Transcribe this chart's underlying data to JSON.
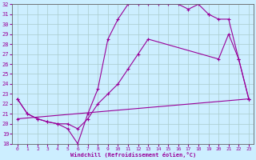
{
  "xlabel": "Windchill (Refroidissement éolien,°C)",
  "xlim": [
    -0.5,
    23.5
  ],
  "ylim": [
    18,
    32
  ],
  "xticks": [
    0,
    1,
    2,
    3,
    4,
    5,
    6,
    7,
    8,
    9,
    10,
    11,
    12,
    13,
    14,
    15,
    16,
    17,
    18,
    19,
    20,
    21,
    22,
    23
  ],
  "yticks": [
    18,
    19,
    20,
    21,
    22,
    23,
    24,
    25,
    26,
    27,
    28,
    29,
    30,
    31,
    32
  ],
  "line_color": "#990099",
  "bg_color": "#cceeff",
  "grid_color": "#aacccc",
  "line_width": 0.8,
  "marker_size": 3.0,
  "curve1_x": [
    0,
    1,
    2,
    3,
    4,
    5,
    6,
    7,
    8,
    9,
    10,
    11,
    12,
    13,
    14,
    15,
    16,
    17,
    18,
    19
  ],
  "curve1_y": [
    22.5,
    21.0,
    20.5,
    20.2,
    20.0,
    19.5,
    18.0,
    21.0,
    23.5,
    28.5,
    30.5,
    32.0,
    32.0,
    32.0,
    32.0,
    32.0,
    32.0,
    31.5,
    32.0,
    31.0
  ],
  "curve2_x": [
    19,
    20,
    21,
    22,
    23
  ],
  "curve2_y": [
    31.0,
    30.5,
    30.5,
    26.5,
    22.5
  ],
  "curve3_x": [
    0,
    1,
    2,
    3,
    4,
    5,
    6,
    7,
    8,
    9,
    10,
    11,
    12,
    13,
    20,
    21,
    22,
    23
  ],
  "curve3_y": [
    22.5,
    21.0,
    20.5,
    20.2,
    20.0,
    20.0,
    19.5,
    20.5,
    22.0,
    23.0,
    24.0,
    25.5,
    27.0,
    28.5,
    26.5,
    29.0,
    26.5,
    22.5
  ],
  "curve4_x": [
    0,
    23
  ],
  "curve4_y": [
    20.5,
    22.5
  ]
}
